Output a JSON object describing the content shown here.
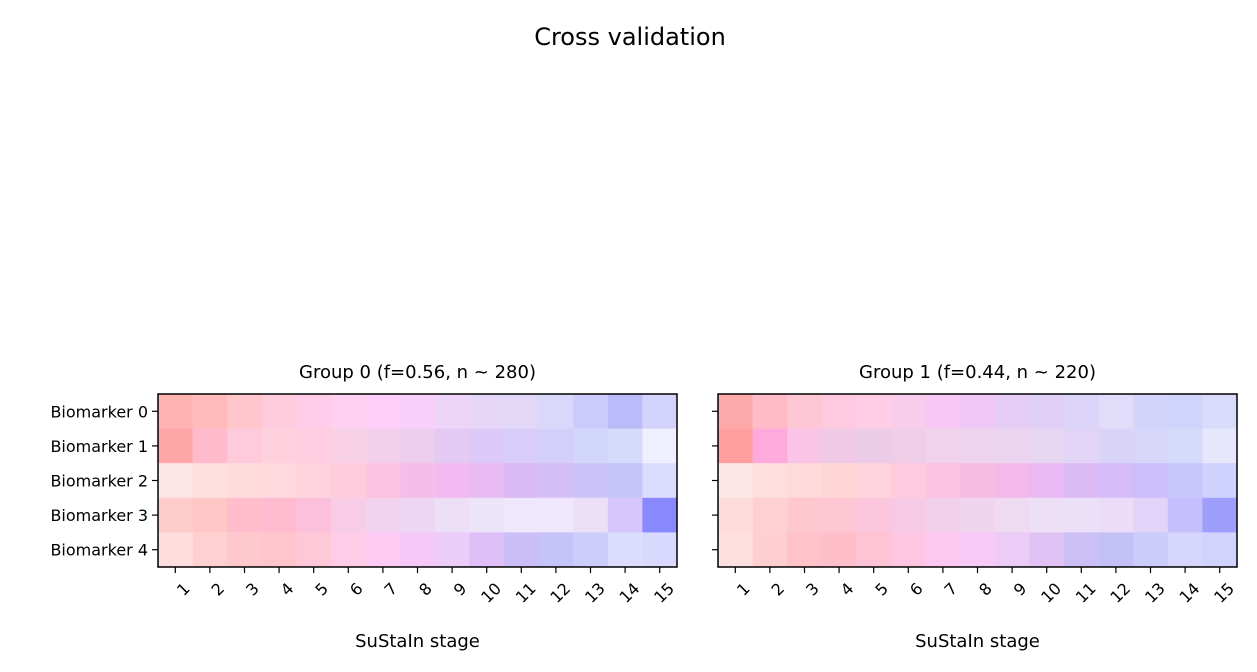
{
  "figure": {
    "title": "Cross validation"
  },
  "chart_data": [
    {
      "type": "heatmap",
      "title": "Group 0 (f=0.56, n$\\sim$280)",
      "title_display": "Group 0 (f=0.56, n ~ 280)",
      "xlabel": "SuStaIn stage",
      "ylabel": "",
      "x_categories": [
        "1",
        "2",
        "3",
        "4",
        "5",
        "6",
        "7",
        "8",
        "9",
        "10",
        "11",
        "12",
        "13",
        "14",
        "15"
      ],
      "y_categories": [
        "Biomarker 0",
        "Biomarker 1",
        "Biomarker 2",
        "Biomarker 3",
        "Biomarker 4"
      ],
      "cells": [
        [
          "#ffb3b3",
          "#ffbbbb",
          "#ffc6cc",
          "#ffccdd",
          "#ffccea",
          "#ffd0f2",
          "#ffcffa",
          "#f8cffa",
          "#eed4f7",
          "#e6d6f7",
          "#e3d7f7",
          "#dad8fa",
          "#ccccfc",
          "#bbbbfa",
          "#d3d3fb"
        ],
        [
          "#ffa6a6",
          "#ffbbcc",
          "#ffcbdc",
          "#ffd0dd",
          "#ffcde0",
          "#f8d0e6",
          "#f2d0ea",
          "#eccdf0",
          "#e4c9f2",
          "#dcc9f7",
          "#d8ccf8",
          "#d4cff9",
          "#d3d6fb",
          "#d6dafb",
          "#efefff"
        ],
        [
          "#ffe6e6",
          "#ffe0e0",
          "#ffdcdc",
          "#ffd9dd",
          "#ffd3de",
          "#ffccdd",
          "#fcc4e0",
          "#f7bdea",
          "#f2baf0",
          "#e8bbf3",
          "#dab9f5",
          "#d4bef8",
          "#ccc3fa",
          "#c5c5fb",
          "#dcdcfd"
        ],
        [
          "#ffcccc",
          "#ffc6c6",
          "#ffbdcc",
          "#ffbbd0",
          "#fcc0dc",
          "#f8cbe6",
          "#f3d2ef",
          "#ecd6f4",
          "#ecdef6",
          "#ece5fa",
          "#efe8fc",
          "#efe8fc",
          "#ecdff8",
          "#d6c6fb",
          "#8888ff"
        ],
        [
          "#ffdddd",
          "#ffd0d0",
          "#ffc8cc",
          "#ffc4cc",
          "#ffc8d8",
          "#ffcce8",
          "#fccaf3",
          "#f5c8fa",
          "#ecccf8",
          "#dfbff8",
          "#cbbdf8",
          "#c4c4f8",
          "#cccdfa",
          "#dcdcfd",
          "#d9d9fd"
        ]
      ]
    },
    {
      "type": "heatmap",
      "title": "Group 1 (f=0.44, n$\\sim$220)",
      "title_display": "Group 1 (f=0.44, n ~ 220)",
      "xlabel": "SuStaIn stage",
      "ylabel": "",
      "x_categories": [
        "1",
        "2",
        "3",
        "4",
        "5",
        "6",
        "7",
        "8",
        "9",
        "10",
        "11",
        "12",
        "13",
        "14",
        "15"
      ],
      "y_categories": [
        "Biomarker 0",
        "Biomarker 1",
        "Biomarker 2",
        "Biomarker 3",
        "Biomarker 4"
      ],
      "cells": [
        [
          "#ffaaaa",
          "#ffbbc6",
          "#ffc7d6",
          "#ffcae0",
          "#ffcde6",
          "#f8cdeb",
          "#f7c8f6",
          "#efc8f7",
          "#e6cdf6",
          "#e0d0f7",
          "#dcd5f9",
          "#e0dcfa",
          "#d2d4f9",
          "#d0d3fa",
          "#d9dbfb"
        ],
        [
          "#ff9e9e",
          "#ffaadd",
          "#f9c4e6",
          "#f0c9e6",
          "#eccbe6",
          "#efcde7",
          "#f0d2ec",
          "#eed3ee",
          "#ead4ef",
          "#e7d6f2",
          "#e2d4f7",
          "#dad3f8",
          "#d7d6f8",
          "#d5d9fa",
          "#e6e6fd"
        ],
        [
          "#ffe6e6",
          "#ffdede",
          "#ffdada",
          "#ffd6d6",
          "#ffd3dd",
          "#ffcade",
          "#fcc2e0",
          "#f8bce5",
          "#f4b9ea",
          "#e8b9f2",
          "#dcbaf4",
          "#d6bcf8",
          "#ccbdfb",
          "#c9c6fb",
          "#cfd2fd"
        ],
        [
          "#ffdcdc",
          "#ffd0d0",
          "#ffc8d0",
          "#ffc6d4",
          "#fcc6dc",
          "#f6cae4",
          "#f3d0ea",
          "#f0d4ee",
          "#eedbf1",
          "#ecdff6",
          "#ecdff8",
          "#ebdcf7",
          "#e2d3f8",
          "#c6bffd",
          "#9e9efb"
        ],
        [
          "#ffe0e0",
          "#ffcece",
          "#ffc2c8",
          "#ffbfca",
          "#ffc3d6",
          "#ffc6e2",
          "#fcc7f1",
          "#f6c9f6",
          "#ecccf6",
          "#e0c2f5",
          "#cbbff6",
          "#c3c0f6",
          "#ccccfb",
          "#d6d6fd",
          "#d2d3fd"
        ]
      ]
    }
  ]
}
